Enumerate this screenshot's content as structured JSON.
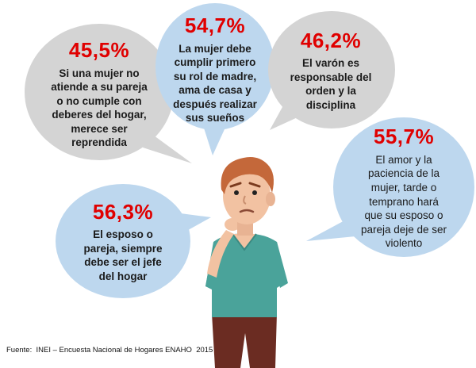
{
  "bubbles": [
    {
      "id": "b1",
      "percent": "45,5%",
      "text": "Si una mujer no\natiende a su pareja\no no cumple con\ndeberes del hogar,\nmerece ser\nreprendida",
      "fill": "#d4d4d4"
    },
    {
      "id": "b2",
      "percent": "54,7%",
      "text": "La mujer debe\ncumplir primero\nsu rol de madre,\nama de casa y\ndespués realizar\nsus sueños",
      "fill": "#bdd7ee"
    },
    {
      "id": "b3",
      "percent": "46,2%",
      "text": "El varón es\nresponsable del\norden y la\ndisciplina",
      "fill": "#d4d4d4"
    },
    {
      "id": "b4",
      "percent": "55,7%",
      "text": "El amor y la\npaciencia de la\nmujer, tarde o\ntemprano hará\nque su esposo o\npareja deje de ser\nviolento",
      "fill": "#bdd7ee"
    },
    {
      "id": "b5",
      "percent": "56,3%",
      "text": "El esposo o\npareja, siempre\ndebe ser el jefe\ndel hogar",
      "fill": "#bdd7ee"
    }
  ],
  "source": "Fuente:  INEI – Encuesta Nacional de Hogares ENAHO  2015",
  "colors": {
    "percent": "#e00000",
    "gray_bubble": "#d4d4d4",
    "blue_bubble": "#bdd7ee",
    "shirt": "#4aa39a",
    "pants": "#6b2c22",
    "hair": "#c4683a"
  }
}
